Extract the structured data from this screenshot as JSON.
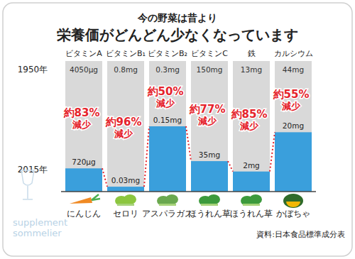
{
  "chart_data": {
    "type": "bar",
    "subtitle": "今の野菜は昔より",
    "title": "栄養価がどんどん少なくなっています",
    "categories": [
      "にんじん",
      "セロリ",
      "アスパラガス",
      "ほうれん草",
      "ほうれん草",
      "かぼちゃ"
    ],
    "nutrients": [
      "ビタミンA",
      "ビタミンB₁",
      "ビタミンB₂",
      "ビタミンC",
      "鉄",
      "カルシウム"
    ],
    "series": [
      {
        "name": "1950年",
        "color": "#d9d9d9",
        "values": [
          4050,
          0.8,
          0.3,
          150,
          13,
          44
        ],
        "value_labels": [
          "4050μg",
          "0.8mg",
          "0.3mg",
          "150mg",
          "13mg",
          "44mg"
        ]
      },
      {
        "name": "2015年",
        "color": "#3a9fdc",
        "values": [
          720,
          0.03,
          0.15,
          35,
          2,
          20
        ],
        "value_labels": [
          "720μg",
          "0.03mg",
          "0.15mg",
          "35mg",
          "2mg",
          "20mg"
        ]
      }
    ],
    "reductions": [
      83,
      96,
      50,
      77,
      85,
      55
    ],
    "reduction_labels": [
      "約83%",
      "約96%",
      "約50%",
      "約77%",
      "約85%",
      "約55%"
    ],
    "reduction_text": "減少",
    "reduction_color": "#e5232b",
    "data_labels": true,
    "tick_labels": false,
    "grid": false,
    "source": "資料:日本食品標準成分表",
    "watermark": [
      "supplement",
      "sommelier"
    ]
  }
}
